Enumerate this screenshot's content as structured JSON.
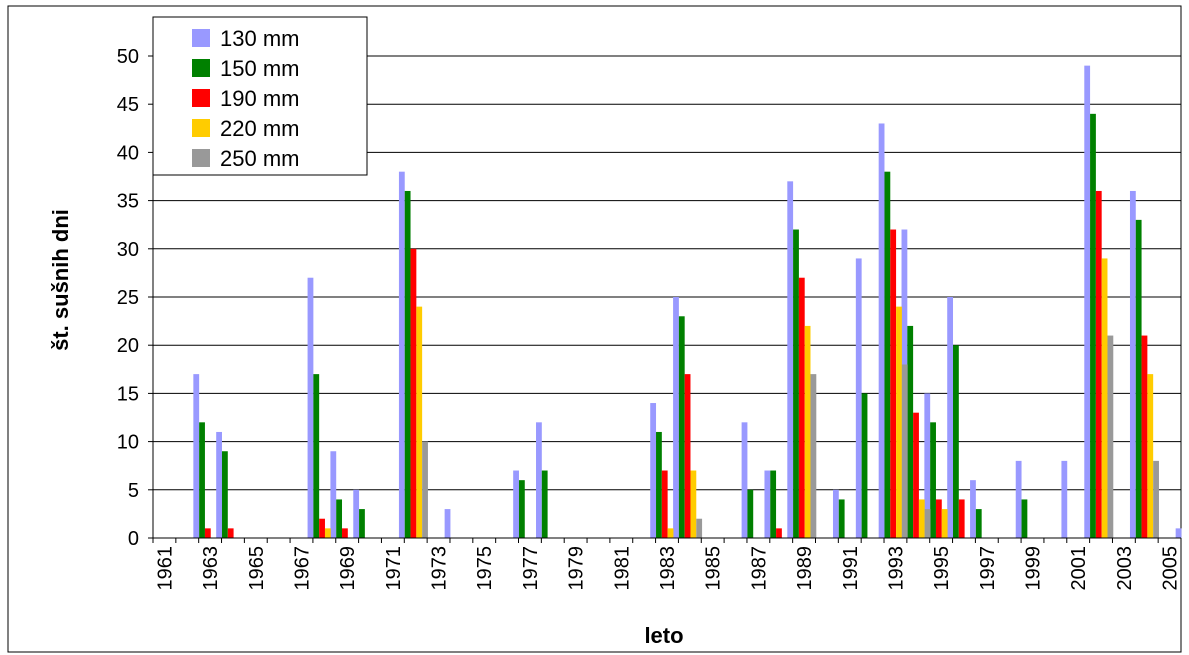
{
  "chart_data": {
    "type": "bar",
    "xlabel": "leto",
    "ylabel": "št. sušnih dni",
    "ylim": [
      0,
      50
    ],
    "yticks": [
      0,
      5,
      10,
      15,
      20,
      25,
      30,
      35,
      40,
      45,
      50
    ],
    "x_tick_labels": [
      "1961",
      "1963",
      "1965",
      "1967",
      "1969",
      "1971",
      "1973",
      "1975",
      "1977",
      "1979",
      "1981",
      "1983",
      "1985",
      "1987",
      "1989",
      "1991",
      "1993",
      "1995",
      "1997",
      "1999",
      "2001",
      "2003",
      "2005"
    ],
    "grid": true,
    "legend_position": "top-left",
    "categories": [
      1961,
      1962,
      1963,
      1964,
      1965,
      1966,
      1967,
      1968,
      1969,
      1970,
      1971,
      1972,
      1973,
      1974,
      1975,
      1976,
      1977,
      1978,
      1979,
      1980,
      1981,
      1982,
      1983,
      1984,
      1985,
      1986,
      1987,
      1988,
      1989,
      1990,
      1991,
      1992,
      1993,
      1994,
      1995,
      1996,
      1997,
      1998,
      1999,
      2000,
      2001,
      2002,
      2003,
      2004,
      2005
    ],
    "series": [
      {
        "name": "130 mm",
        "color": "#9999ff",
        "values": [
          0,
          17,
          11,
          0,
          0,
          0,
          27,
          9,
          5,
          0,
          38,
          0,
          3,
          0,
          0,
          7,
          12,
          0,
          0,
          0,
          0,
          14,
          25,
          0,
          0,
          12,
          7,
          37,
          0,
          5,
          29,
          43,
          32,
          15,
          25,
          6,
          0,
          8,
          0,
          8,
          49,
          0,
          36,
          0,
          1
        ]
      },
      {
        "name": "150 mm",
        "color": "#008000",
        "values": [
          0,
          12,
          9,
          0,
          0,
          0,
          17,
          4,
          3,
          0,
          36,
          0,
          0,
          0,
          0,
          6,
          7,
          0,
          0,
          0,
          0,
          11,
          23,
          0,
          0,
          5,
          7,
          32,
          0,
          4,
          15,
          38,
          22,
          12,
          20,
          3,
          0,
          4,
          0,
          0,
          44,
          0,
          33,
          0,
          0
        ]
      },
      {
        "name": "190 mm",
        "color": "#ff0000",
        "values": [
          0,
          1,
          1,
          0,
          0,
          0,
          2,
          1,
          0,
          0,
          30,
          0,
          0,
          0,
          0,
          0,
          0,
          0,
          0,
          0,
          0,
          7,
          17,
          0,
          0,
          0,
          1,
          27,
          0,
          0,
          0,
          32,
          13,
          4,
          4,
          0,
          0,
          0,
          0,
          0,
          36,
          0,
          21,
          0,
          0
        ]
      },
      {
        "name": "220 mm",
        "color": "#ffcc00",
        "values": [
          0,
          0,
          0,
          0,
          0,
          0,
          1,
          0,
          0,
          0,
          24,
          0,
          0,
          0,
          0,
          0,
          0,
          0,
          0,
          0,
          0,
          1,
          7,
          0,
          0,
          0,
          0,
          22,
          0,
          0,
          0,
          24,
          4,
          3,
          0,
          0,
          0,
          0,
          0,
          0,
          29,
          0,
          17,
          0,
          0
        ]
      },
      {
        "name": "250 mm",
        "color": "#999999",
        "values": [
          0,
          0,
          0,
          0,
          0,
          0,
          0,
          0,
          0,
          0,
          10,
          0,
          0,
          0,
          0,
          0,
          0,
          0,
          0,
          0,
          0,
          0,
          2,
          0,
          0,
          0,
          0,
          17,
          0,
          0,
          0,
          18,
          3,
          0,
          0,
          0,
          0,
          0,
          0,
          0,
          21,
          0,
          8,
          0,
          0
        ]
      }
    ]
  }
}
